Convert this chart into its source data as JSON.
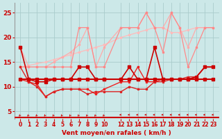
{
  "x": [
    0,
    1,
    2,
    3,
    4,
    5,
    6,
    7,
    8,
    9,
    10,
    12,
    13,
    14,
    15,
    16,
    17,
    18,
    19,
    20,
    21,
    22,
    23
  ],
  "bg_color": "#cce8e8",
  "grid_color": "#aacccc",
  "xlabel": "Vent moyen/en rafales ( km/h )",
  "yticks": [
    5,
    10,
    15,
    20,
    25
  ],
  "xticks": [
    0,
    1,
    2,
    3,
    4,
    5,
    6,
    7,
    8,
    9,
    10,
    12,
    13,
    14,
    15,
    16,
    17,
    18,
    19,
    20,
    21,
    22,
    23
  ],
  "tick_color": "#cc0000",
  "dark_red": "#cc0000",
  "mid_red": "#dd3333",
  "light_red": "#ff8888",
  "lighter_red": "#ffaaaa",
  "line_flat": [
    11.5,
    11.5,
    11.5,
    11.5,
    11.5,
    11.5,
    11.5,
    11.5,
    11.5,
    11.5,
    11.5,
    11.5,
    11.5,
    11.5,
    11.5,
    11.5,
    11.5,
    11.5,
    11.5,
    11.5,
    11.5,
    11.5,
    11.5
  ],
  "line_wavy": [
    18,
    11.5,
    11,
    11,
    11.5,
    11.5,
    11.5,
    14,
    14,
    11.5,
    11.5,
    11.5,
    14,
    11.5,
    11.5,
    18,
    11.5,
    11.5,
    11.5,
    11.5,
    12,
    14,
    14
  ],
  "line_dip": [
    14,
    11,
    10,
    8,
    9,
    9.5,
    9.5,
    9.5,
    8.5,
    9,
    9,
    9,
    10,
    9.5,
    9.5,
    11,
    11,
    11.5,
    11.5,
    12,
    12,
    14,
    14
  ],
  "line_dip2": [
    11.5,
    11,
    10.5,
    8,
    9,
    9.5,
    9.5,
    9.5,
    9.5,
    8.5,
    9.5,
    11,
    11,
    14,
    11,
    11,
    11.5,
    11.5,
    11.5,
    11.5,
    12,
    14,
    14
  ],
  "line_upper_trend": [
    14,
    14.3,
    14.7,
    15,
    15.5,
    16,
    16.5,
    17,
    17.5,
    18,
    18.5,
    20,
    20.5,
    21,
    21.5,
    22,
    22,
    21,
    21,
    21.5,
    22,
    22,
    22
  ],
  "line_upper_spiky": [
    14,
    14,
    14,
    14,
    14,
    14,
    14,
    22,
    22,
    14,
    14,
    22,
    22,
    22,
    25,
    22,
    17,
    25,
    22,
    14,
    18,
    22,
    22
  ],
  "line_upper_spiky2": [
    18,
    14,
    14,
    14,
    15,
    16,
    17,
    18.5,
    22,
    14,
    18,
    22,
    22,
    22,
    25,
    22,
    22,
    25,
    22,
    18,
    22,
    22,
    22
  ]
}
